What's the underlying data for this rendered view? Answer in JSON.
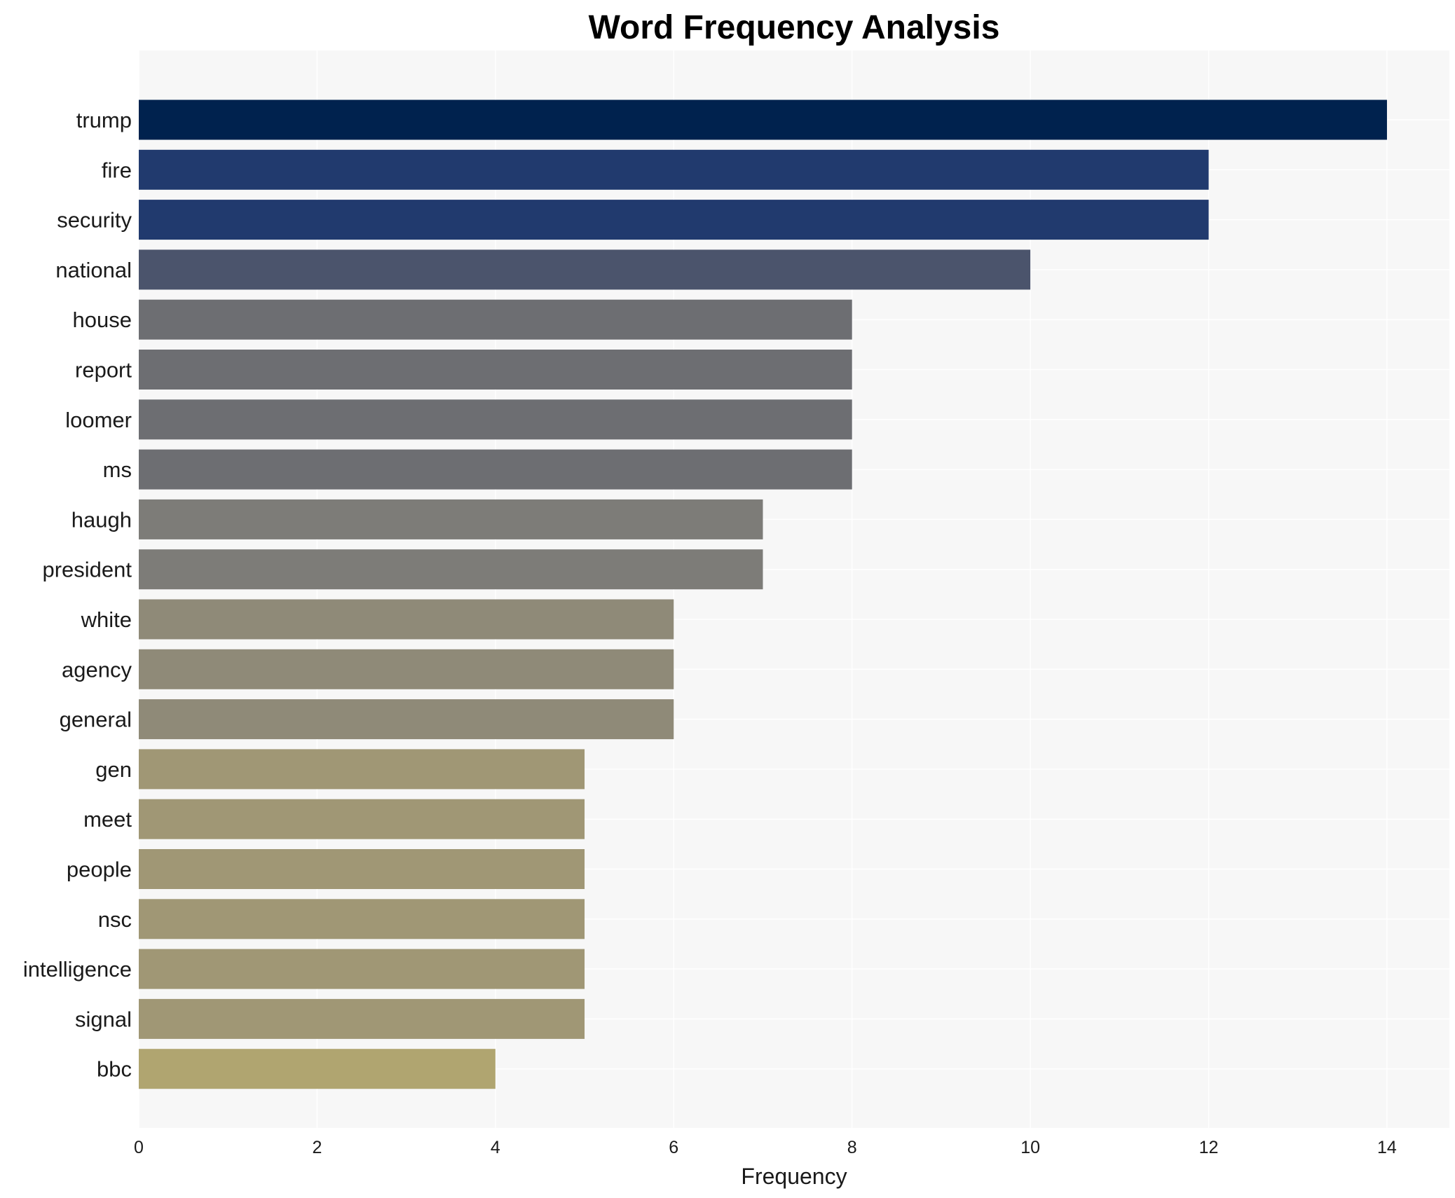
{
  "chart_data": {
    "type": "bar",
    "orientation": "horizontal",
    "title": "Word Frequency Analysis",
    "xlabel": "Frequency",
    "ylabel": "",
    "xlim": [
      0,
      14.7
    ],
    "xticks": [
      0,
      2,
      4,
      6,
      8,
      10,
      12,
      14
    ],
    "grid": true,
    "categories": [
      "trump",
      "fire",
      "security",
      "national",
      "house",
      "report",
      "loomer",
      "ms",
      "haugh",
      "president",
      "white",
      "agency",
      "general",
      "gen",
      "meet",
      "people",
      "nsc",
      "intelligence",
      "signal",
      "bbc"
    ],
    "values": [
      14,
      12,
      12,
      10,
      8,
      8,
      8,
      8,
      7,
      7,
      6,
      6,
      6,
      5,
      5,
      5,
      5,
      5,
      5,
      4
    ],
    "colors": [
      "#00224e",
      "#213a6e",
      "#213a6e",
      "#4b546c",
      "#6d6e72",
      "#6d6e72",
      "#6d6e72",
      "#6d6e72",
      "#7d7c78",
      "#7d7c78",
      "#8f8a78",
      "#8f8a78",
      "#8f8a78",
      "#a09775",
      "#a09775",
      "#a09775",
      "#a09775",
      "#a09775",
      "#a09775",
      "#b0a570"
    ],
    "plot_background": "#f7f7f7"
  }
}
